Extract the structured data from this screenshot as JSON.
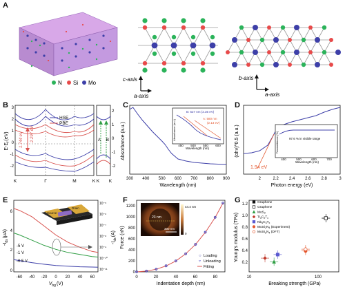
{
  "panels": {
    "A": {
      "letter": "A",
      "legend": {
        "N": "N",
        "Si": "Si",
        "Mo": "Mo"
      },
      "side_axes": {
        "vertical": "c-axis",
        "horizontal": "a-axis"
      },
      "top_axes": {
        "vertical": "b-axis",
        "horizontal": "a-axis"
      },
      "colors": {
        "N": "#2bb35a",
        "Si": "#e84a4a",
        "Mo": "#3d3fa8"
      }
    },
    "B": {
      "letter": "B",
      "ylabel": "E-E",
      "ylabel_sub": "f",
      "ylabel_unit": "(eV)",
      "legend": [
        "HSE",
        "PBE"
      ],
      "gap_labels": [
        "2.297 eV",
        "1.744 eV"
      ],
      "k_labels": [
        "K",
        "Γ",
        "M",
        "K",
        "K",
        "K"
      ],
      "valley_labels": [
        "A",
        "B"
      ],
      "yticks_left": [
        "3",
        "2",
        "1",
        "0",
        "-1",
        "-2"
      ],
      "yticks_right": [
        "2",
        "1",
        "0",
        "-1",
        "-2"
      ]
    },
    "C": {
      "letter": "C",
      "inset_labels": {
        "peak_b": "B: 527 nm (2.35 eV)",
        "peak_a": "A: 580 nm",
        "peak_a_ev": "(2.13 eV)",
        "ylabel": "Absorbance (a.u.)",
        "xlabel": "Wavelength (nm)",
        "xticks": [
          "450",
          "500",
          "550",
          "600"
        ]
      }
    },
    "D": {
      "letter": "D",
      "bandgap_label": "1.94 eV",
      "inset_labels": {
        "ylabel": "Transmittance (%)",
        "xlabel": "Wavelength (nm)",
        "note": "97.6 % in visible range",
        "xticks": [
          "400",
          "500",
          "600",
          "700"
        ]
      }
    },
    "E": {
      "letter": "E",
      "ylabel_left": "-I",
      "ylabel_left_sub": "ds",
      "ylabel_left_unit": "(μA)",
      "ylabel_right": "-I",
      "ylabel_right_sub": "ds",
      "ylabel_right_unit": "(A)",
      "xlabel": "V",
      "xlabel_sub": "bg",
      "xlabel_unit": "(V)",
      "curve_labels": [
        "-5 V",
        "-1 V",
        "-0.5 V"
      ],
      "device_labels": {
        "source": "Source",
        "drain": "Drain"
      },
      "yticks_left": [
        "6",
        "4",
        "2",
        "0"
      ],
      "yticks_right": [
        "10⁻⁵",
        "10⁻⁶",
        "10⁻⁷",
        "10⁻⁸",
        "10⁻⁹",
        "10⁻¹⁰",
        "10⁻¹¹"
      ],
      "xticks": [
        "-60",
        "-40",
        "-20",
        "0",
        "20",
        "40",
        "60"
      ]
    },
    "F": {
      "letter": "F",
      "ylabel": "Force (nN)",
      "xlabel": "Indentation depth (nm)",
      "legend": [
        "Loading",
        "Unloading",
        "Fitting"
      ],
      "inset": {
        "thickness": "23 nm",
        "height_bar": "44.4 nm",
        "scale": "300 nm",
        "zero": "0"
      },
      "yticks": [
        "0",
        "200",
        "400",
        "600",
        "800",
        "1000",
        "1200"
      ],
      "xticks": [
        "0",
        "20",
        "40",
        "60",
        "80"
      ]
    },
    "G": {
      "letter": "G",
      "ylabel": "Young's modulus (TPa)",
      "xlabel": "Breaking strength (GPa)",
      "yticks": [
        "0.2",
        "0.4",
        "0.6",
        "0.8",
        "1.0",
        "1.2"
      ],
      "xticks": [
        "10",
        "100"
      ]
    }
  },
  "chart_data": [
    {
      "type": "line",
      "panel": "C",
      "xlabel": "Wavelength (nm)",
      "ylabel": "Absorbance (a.u.)",
      "xlim": [
        300,
        900
      ],
      "xticks": [
        300,
        400,
        500,
        600,
        700,
        800,
        900
      ],
      "series": [
        {
          "x": [
            300,
            320,
            350,
            380,
            410,
            440,
            470,
            500,
            520,
            540,
            560,
            580,
            600,
            650,
            700,
            800,
            900
          ],
          "y": [
            0.94,
            0.97,
            0.87,
            0.78,
            0.7,
            0.62,
            0.55,
            0.48,
            0.43,
            0.36,
            0.3,
            0.26,
            0.22,
            0.19,
            0.17,
            0.15,
            0.14
          ]
        }
      ]
    },
    {
      "type": "line",
      "panel": "D",
      "xlabel": "Photon energy (eV)",
      "ylabel": "(αhν)^0.5 (a.u.)",
      "xlim": [
        1.8,
        3.0
      ],
      "xticks": [
        2.0,
        2.2,
        2.4,
        2.6,
        2.8,
        3.0
      ],
      "series": [
        {
          "x": [
            1.8,
            1.9,
            2.0,
            2.1,
            2.15,
            2.2,
            2.3,
            2.4,
            2.5,
            2.6,
            2.7,
            2.8,
            2.9,
            3.0
          ],
          "y": [
            0.3,
            0.31,
            0.34,
            0.42,
            0.52,
            0.63,
            0.72,
            0.76,
            0.79,
            0.82,
            0.85,
            0.9,
            0.94,
            0.97
          ]
        }
      ]
    },
    {
      "type": "line",
      "panel": "E",
      "xlabel": "Vbg (V)",
      "ylabel": "-Ids (μA)",
      "xlim": [
        -70,
        70
      ],
      "ylim": [
        0,
        7
      ],
      "series": [
        {
          "name": "-5 V",
          "x": [
            -70,
            -60,
            -40,
            -20,
            0,
            20,
            40,
            60,
            70
          ],
          "y": [
            6.2,
            6.0,
            5.4,
            4.5,
            3.6,
            2.9,
            2.4,
            2.0,
            1.9
          ]
        },
        {
          "name": "-1 V",
          "x": [
            -70,
            -60,
            -40,
            -20,
            0,
            20,
            40,
            60,
            70
          ],
          "y": [
            3.8,
            3.6,
            3.1,
            2.6,
            2.2,
            1.9,
            1.7,
            1.5,
            1.45
          ]
        },
        {
          "name": "-0.5 V",
          "x": [
            -70,
            -60,
            -40,
            -20,
            0,
            20,
            40,
            60,
            70
          ],
          "y": [
            1.2,
            1.1,
            0.9,
            0.75,
            0.62,
            0.55,
            0.5,
            0.47,
            0.46
          ]
        }
      ]
    },
    {
      "type": "scatter",
      "panel": "F",
      "xlabel": "Indentation depth (nm)",
      "ylabel": "Force (nN)",
      "xlim": [
        0,
        90
      ],
      "ylim": [
        0,
        1300
      ],
      "series": [
        {
          "name": "Loading",
          "x": [
            0,
            10,
            20,
            30,
            40,
            50,
            60,
            70,
            80,
            88
          ],
          "y": [
            0,
            15,
            50,
            110,
            200,
            330,
            500,
            720,
            990,
            1250
          ]
        },
        {
          "name": "Unloading",
          "x": [
            0,
            10,
            20,
            30,
            40,
            50,
            60,
            70,
            80,
            88
          ],
          "y": [
            0,
            12,
            45,
            105,
            195,
            325,
            495,
            715,
            985,
            1250
          ]
        },
        {
          "name": "Fitting",
          "x": [
            0,
            10,
            20,
            30,
            40,
            50,
            60,
            70,
            80,
            88
          ],
          "y": [
            0,
            14,
            48,
            108,
            198,
            328,
            498,
            718,
            988,
            1250
          ]
        }
      ]
    },
    {
      "type": "scatter",
      "panel": "G",
      "xlabel": "Breaking strength (GPa)",
      "ylabel": "Young's modulus (TPa)",
      "xscale": "log",
      "xlim": [
        10,
        200
      ],
      "ylim": [
        0.1,
        1.3
      ],
      "series": [
        {
          "name": "Graphene",
          "marker": "square",
          "color": "#111111",
          "x": [
            130
          ],
          "y": [
            1.0
          ]
        },
        {
          "name": "Graphene",
          "marker": "open-square",
          "color": "#111111",
          "x": [
            130
          ],
          "y": [
            1.0
          ]
        },
        {
          "name": "MoS",
          "name_sub": "2",
          "marker": "triangle",
          "color": "#2f9e44",
          "x": [
            23
          ],
          "y": [
            0.27
          ]
        },
        {
          "name": "Ti",
          "name_sub": "3",
          "name_tail": "C",
          "name_sub2": "2",
          "name_tail2": "T",
          "name_sub3": "x",
          "marker": "diamond",
          "color": "#c0392b",
          "x": [
            17
          ],
          "y": [
            0.33
          ]
        },
        {
          "name": "Nb",
          "name_sub": "4",
          "name_tail": "C",
          "name_sub2": "3",
          "name_tail2": "T",
          "name_sub3": "x",
          "marker": "square",
          "color": "#5a5ad0",
          "x": [
            26
          ],
          "y": [
            0.39
          ]
        },
        {
          "name": "MoSi",
          "name_sub": "2",
          "name_tail": "N",
          "name_sub2": "4",
          "name_tail2": " (Experiment)",
          "marker": "circle",
          "color": "#e4572e",
          "x": [
            66
          ],
          "y": [
            0.45
          ]
        },
        {
          "name": "MoSi",
          "name_sub": "2",
          "name_tail": "N",
          "name_sub2": "4",
          "name_tail2": " (DFT)",
          "marker": "open-circle",
          "color": "#e4572e",
          "x": [
            66
          ],
          "y": [
            0.48
          ]
        }
      ]
    }
  ]
}
